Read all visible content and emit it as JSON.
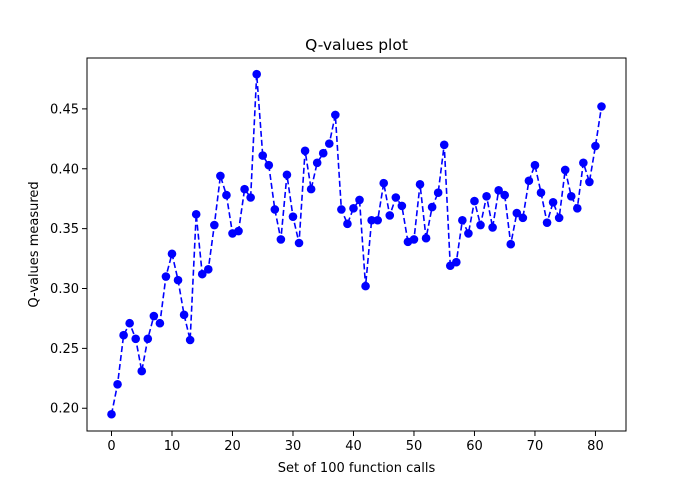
{
  "chart_data": {
    "type": "line",
    "title": "Q-values plot",
    "xlabel": "Set of 100 function calls",
    "ylabel": "Q-values measured",
    "xlim": [
      -4.05,
      85.05
    ],
    "ylim": [
      0.181,
      0.4925
    ],
    "xticks": [
      0,
      10,
      20,
      30,
      40,
      50,
      60,
      70,
      80
    ],
    "yticks": [
      0.2,
      0.25,
      0.3,
      0.35,
      0.4,
      0.45
    ],
    "xtick_labels": [
      "0",
      "10",
      "20",
      "30",
      "40",
      "50",
      "60",
      "70",
      "80"
    ],
    "ytick_labels": [
      "0.20",
      "0.25",
      "0.30",
      "0.35",
      "0.40",
      "0.45"
    ],
    "grid": false,
    "series": [
      {
        "color": "#0000ff",
        "line_style": "dashed",
        "marker": "circle",
        "x": [
          0,
          1,
          2,
          3,
          4,
          5,
          6,
          7,
          8,
          9,
          10,
          11,
          12,
          13,
          14,
          15,
          16,
          17,
          18,
          19,
          20,
          21,
          22,
          23,
          24,
          25,
          26,
          27,
          28,
          29,
          30,
          31,
          32,
          33,
          34,
          35,
          36,
          37,
          38,
          39,
          40,
          41,
          42,
          43,
          44,
          45,
          46,
          47,
          48,
          49,
          50,
          51,
          52,
          53,
          54,
          55,
          56,
          57,
          58,
          59,
          60,
          61,
          62,
          63,
          64,
          65,
          66,
          67,
          68,
          69,
          70,
          71,
          72,
          73,
          74,
          75,
          76,
          77,
          78,
          79,
          80,
          81
        ],
        "y": [
          0.195,
          0.22,
          0.261,
          0.271,
          0.258,
          0.231,
          0.258,
          0.277,
          0.271,
          0.31,
          0.329,
          0.307,
          0.278,
          0.257,
          0.362,
          0.312,
          0.316,
          0.353,
          0.394,
          0.378,
          0.346,
          0.348,
          0.383,
          0.376,
          0.479,
          0.411,
          0.403,
          0.366,
          0.341,
          0.395,
          0.36,
          0.338,
          0.415,
          0.383,
          0.405,
          0.413,
          0.421,
          0.445,
          0.366,
          0.354,
          0.367,
          0.374,
          0.302,
          0.357,
          0.357,
          0.388,
          0.361,
          0.376,
          0.369,
          0.339,
          0.341,
          0.387,
          0.342,
          0.368,
          0.38,
          0.42,
          0.319,
          0.322,
          0.357,
          0.346,
          0.373,
          0.353,
          0.377,
          0.351,
          0.382,
          0.378,
          0.337,
          0.363,
          0.359,
          0.39,
          0.403,
          0.38,
          0.355,
          0.372,
          0.359,
          0.399,
          0.377,
          0.367,
          0.405,
          0.389,
          0.419,
          0.452
        ]
      }
    ]
  }
}
